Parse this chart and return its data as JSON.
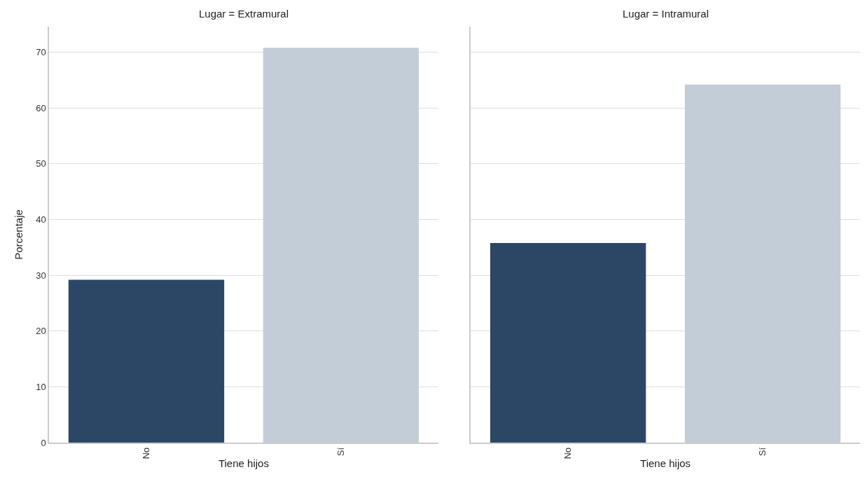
{
  "chart_data": [
    {
      "type": "bar",
      "title": "Lugar = Extramural",
      "xlabel": "Tiene hijos",
      "ylabel": "Porcentaje",
      "categories": [
        "No",
        "Sí"
      ],
      "values": [
        29.2,
        70.8
      ],
      "colors": [
        "#2c4766",
        "#c3cdd7"
      ],
      "ylim": [
        0,
        74.6
      ],
      "yticks": [
        0,
        10,
        20,
        30,
        40,
        50,
        60,
        70
      ],
      "grid": "y"
    },
    {
      "type": "bar",
      "title": "Lugar = Intramural",
      "xlabel": "Tiene hijos",
      "categories": [
        "No",
        "Sí"
      ],
      "values": [
        35.8,
        64.2
      ],
      "colors": [
        "#2c4766",
        "#c3cdd7"
      ],
      "ylim": [
        0,
        74.6
      ],
      "yticks": [
        0,
        10,
        20,
        30,
        40,
        50,
        60,
        70
      ],
      "grid": "y",
      "tick_labels": "x"
    }
  ]
}
